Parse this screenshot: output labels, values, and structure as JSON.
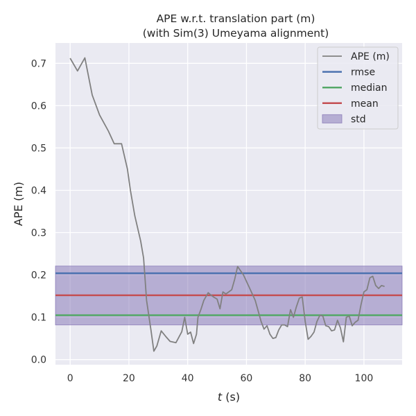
{
  "chart_data": {
    "type": "line",
    "title_line1": "APE w.r.t. translation part (m)",
    "title_line2": "(with Sim(3) Umeyama alignment)",
    "xlabel_italic": "t",
    "xlabel_unit": " (s)",
    "ylabel": "APE (m)",
    "xlim": [
      -5,
      113
    ],
    "ylim": [
      -0.012,
      0.748
    ],
    "x_ticks": [
      0,
      20,
      40,
      60,
      80,
      100
    ],
    "y_ticks": [
      0.0,
      0.1,
      0.2,
      0.3,
      0.4,
      0.5,
      0.6,
      0.7
    ],
    "y_tick_labels": [
      "0.0",
      "0.1",
      "0.2",
      "0.3",
      "0.4",
      "0.5",
      "0.6",
      "0.7"
    ],
    "grid": true,
    "legend_position": "top-right",
    "colors": {
      "background": "#eaeaf2",
      "grid": "#ffffff",
      "ape": "#808080",
      "rmse": "#4c72b0",
      "median": "#55a868",
      "mean": "#c44e52",
      "std_fill": "#8172b3"
    },
    "series": [
      {
        "name": "APE (m)",
        "x": [
          0,
          2.5,
          5,
          7.5,
          10,
          13,
          15,
          17.5,
          19.5,
          20.5,
          22,
          24,
          25,
          26,
          27.5,
          28.5,
          29.5,
          31,
          32.5,
          34,
          36,
          38,
          39,
          40,
          41,
          42,
          43,
          43.5,
          44.5,
          45.5,
          47,
          48,
          49,
          50,
          51,
          52,
          53,
          54,
          55,
          56,
          57,
          59,
          61,
          63,
          65,
          66,
          67,
          68,
          69,
          70,
          71,
          72,
          73,
          74,
          75,
          76,
          77,
          78,
          79,
          80,
          81,
          82,
          83,
          84,
          85,
          86,
          87,
          88,
          89,
          90,
          91,
          92,
          93,
          94,
          95,
          96,
          97,
          98,
          99,
          100,
          101,
          102,
          103,
          104,
          105,
          106,
          107
        ],
        "y": [
          0.712,
          0.682,
          0.713,
          0.625,
          0.578,
          0.54,
          0.51,
          0.51,
          0.45,
          0.4,
          0.34,
          0.28,
          0.24,
          0.14,
          0.07,
          0.02,
          0.032,
          0.068,
          0.055,
          0.043,
          0.04,
          0.066,
          0.1,
          0.06,
          0.065,
          0.038,
          0.06,
          0.1,
          0.118,
          0.14,
          0.158,
          0.152,
          0.147,
          0.143,
          0.12,
          0.16,
          0.155,
          0.16,
          0.165,
          0.19,
          0.22,
          0.2,
          0.17,
          0.14,
          0.09,
          0.072,
          0.08,
          0.06,
          0.05,
          0.052,
          0.07,
          0.082,
          0.082,
          0.078,
          0.118,
          0.1,
          0.125,
          0.145,
          0.148,
          0.09,
          0.048,
          0.055,
          0.065,
          0.09,
          0.105,
          0.103,
          0.08,
          0.078,
          0.068,
          0.07,
          0.093,
          0.075,
          0.042,
          0.1,
          0.103,
          0.08,
          0.088,
          0.093,
          0.13,
          0.16,
          0.165,
          0.193,
          0.197,
          0.175,
          0.168,
          0.175,
          0.173
        ]
      },
      {
        "name": "rmse",
        "value": 0.204
      },
      {
        "name": "median",
        "value": 0.105
      },
      {
        "name": "mean",
        "value": 0.152
      },
      {
        "name": "std",
        "lower": 0.082,
        "upper": 0.221
      }
    ]
  }
}
